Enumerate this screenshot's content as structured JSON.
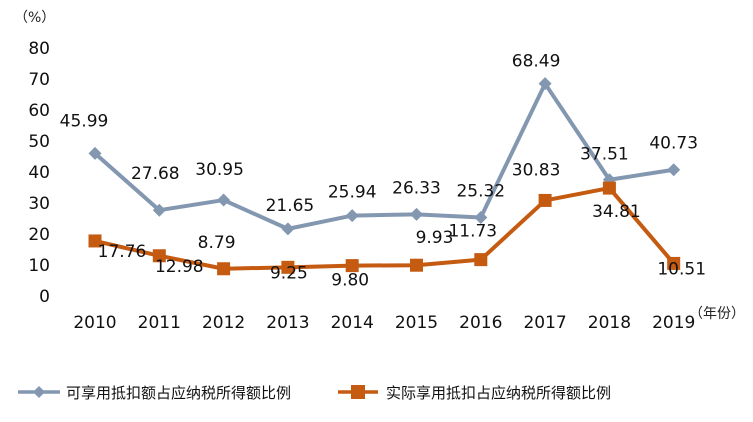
{
  "chart_data": {
    "type": "line",
    "y_unit": "（%）",
    "x_unit": "（年份）",
    "x": [
      "2010",
      "2011",
      "2012",
      "2013",
      "2014",
      "2015",
      "2016",
      "2017",
      "2018",
      "2019"
    ],
    "ylim": [
      0,
      80
    ],
    "yticks": [
      0,
      10,
      20,
      30,
      40,
      50,
      60,
      70,
      80
    ],
    "grid": false,
    "legend_position": "bottom",
    "series": [
      {
        "name": "可享用抵扣额占应纳税所得额比例",
        "color": "#8497b0",
        "marker": "diamond",
        "values": [
          45.99,
          27.68,
          30.95,
          21.65,
          25.94,
          26.33,
          25.32,
          68.49,
          37.51,
          40.73
        ],
        "labels": [
          "45.99",
          "27.68",
          "30.95",
          "21.65",
          "25.94",
          "26.33",
          "25.32",
          "68.49",
          "37.51",
          "40.73"
        ]
      },
      {
        "name": "实际享用抵扣占应纳税所得额比例",
        "color": "#c55a11",
        "marker": "square",
        "values": [
          17.76,
          12.98,
          8.79,
          9.25,
          9.8,
          9.93,
          11.73,
          30.83,
          34.81,
          10.51
        ],
        "labels": [
          "17.76",
          "12.98",
          "8.79",
          "9.25",
          "9.80",
          "9.93",
          "11.73",
          "30.83",
          "34.81",
          "10.51"
        ]
      }
    ]
  }
}
